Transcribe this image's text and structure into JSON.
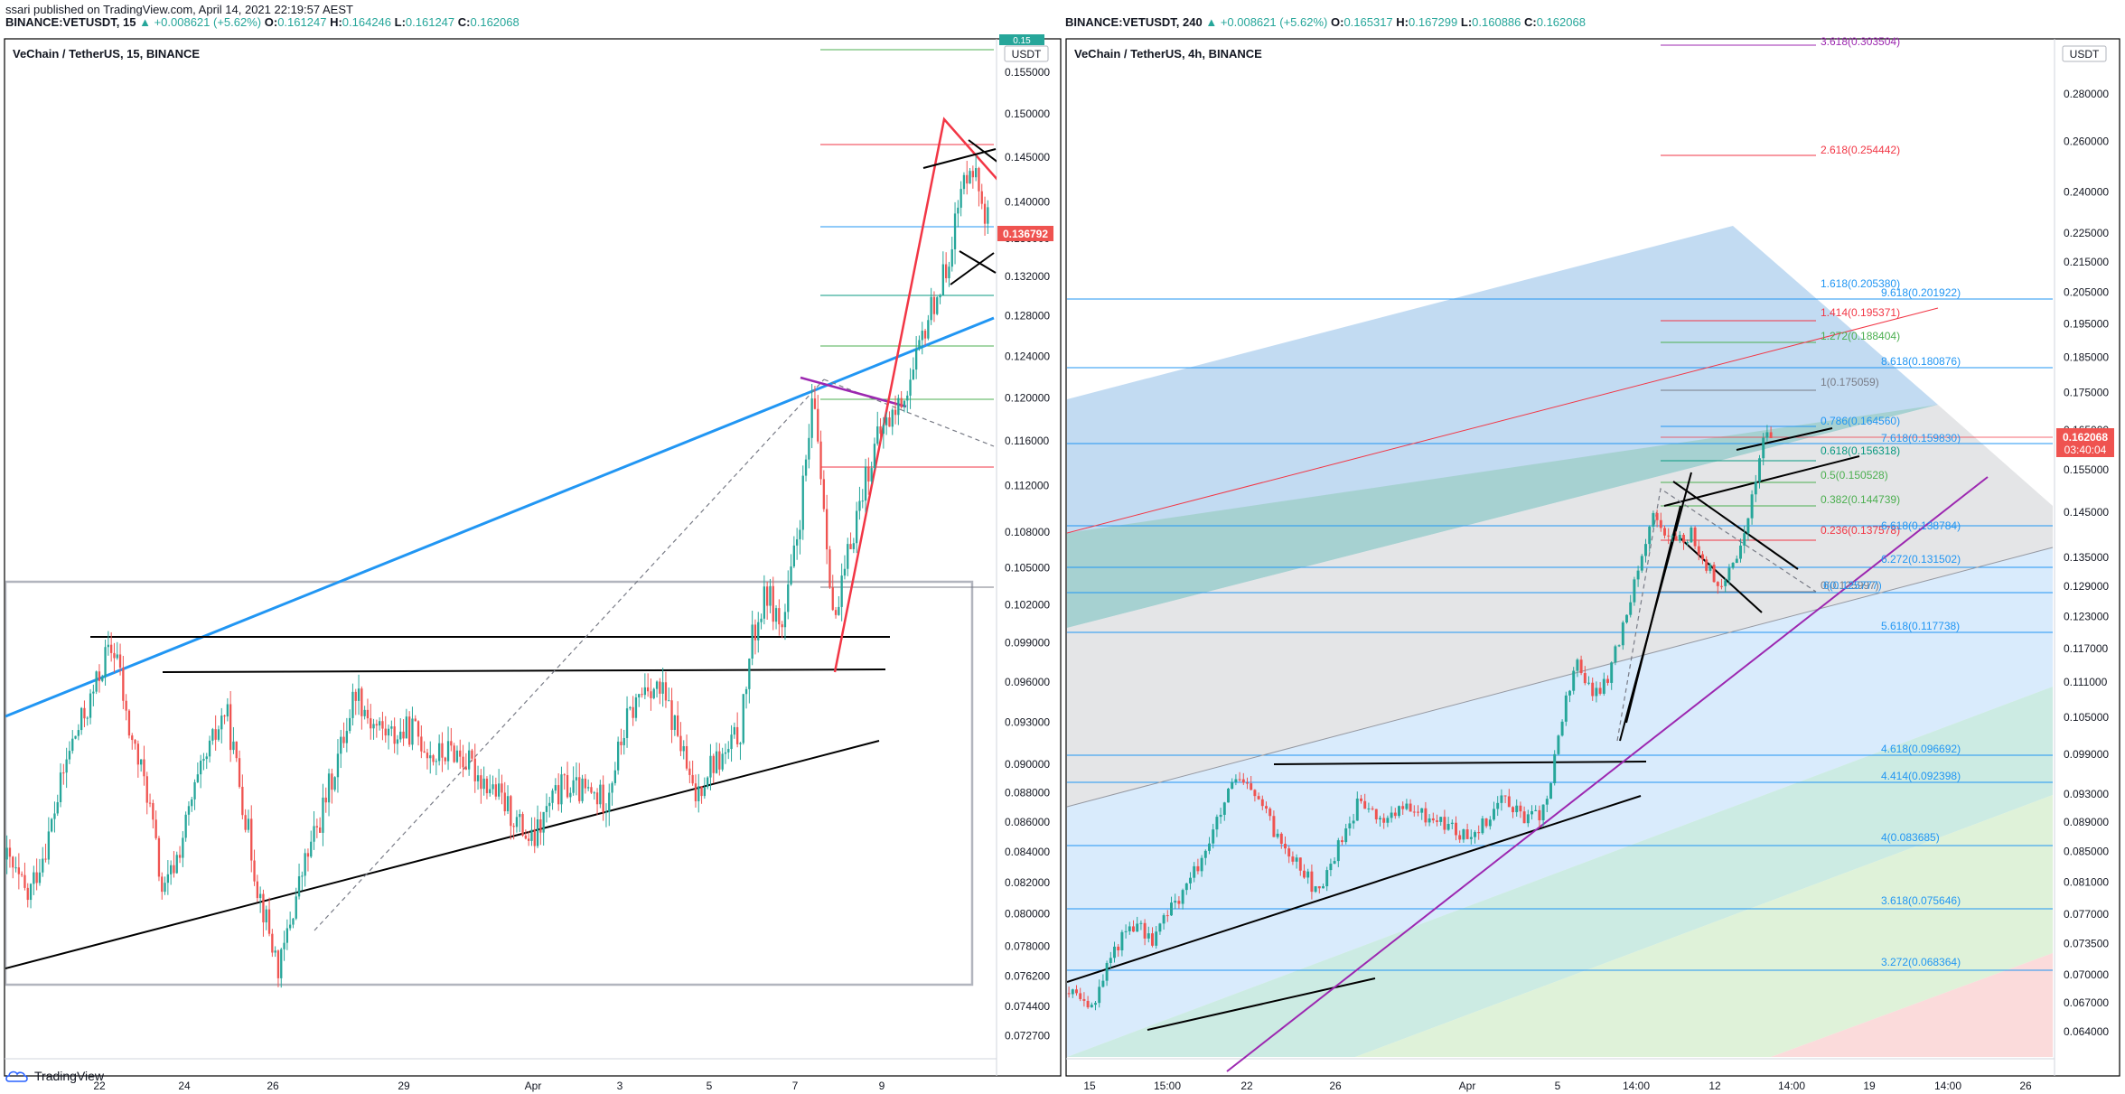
{
  "page": {
    "publish_line": "ssari published on TradingView.com, April 14, 2021 22:19:57 AEST",
    "brand": "TradingView",
    "brand_icon": "tradingview-cloud-icon",
    "colors": {
      "up": "#26a69a",
      "down": "#ef5350",
      "price_tag": "#ef5350",
      "trend_blue": "#2196f3",
      "trend_red": "#f23645",
      "trend_purple": "#9c27b0",
      "line_black": "#000000"
    }
  },
  "panels": [
    {
      "id": "left",
      "header": {
        "symbol": "BINANCE:VETUSDT, 15",
        "change": "+0.008621 (+5.62%)",
        "o_label": "O:",
        "o": "0.161247",
        "h_label": "H:",
        "h": "0.164246",
        "l_label": "L:",
        "l": "0.161247",
        "c_label": "C:",
        "c": "0.162068"
      },
      "title": "VeChain / TetherUS, 15, BINANCE",
      "currency": "USDT",
      "last_price": "0.136792",
      "top_partial_tag": "0.15",
      "price_labels": [
        "0.155000",
        "0.150000",
        "0.145000",
        "0.140000",
        "0.136000",
        "0.132000",
        "0.128000",
        "0.124000",
        "0.120000",
        "0.116000",
        "0.112000",
        "0.108000",
        "0.105000",
        "0.102000",
        "0.099000",
        "0.096000",
        "0.093000",
        "0.090000",
        "0.088000",
        "0.086000",
        "0.084000",
        "0.082000",
        "0.080000",
        "0.078000",
        "0.076200",
        "0.074400",
        "0.072700"
      ],
      "time_labels": [
        "22",
        "24",
        "26",
        "29",
        "Apr",
        "3",
        "5",
        "7",
        "9"
      ]
    },
    {
      "id": "right",
      "header": {
        "symbol": "BINANCE:VETUSDT, 240",
        "change": "+0.008621 (+5.62%)",
        "o_label": "O:",
        "o": "0.165317",
        "h_label": "H:",
        "h": "0.167299",
        "l_label": "L:",
        "l": "0.160886",
        "c_label": "C:",
        "c": "0.162068"
      },
      "title": "VeChain / TetherUS, 4h, BINANCE",
      "currency": "USDT",
      "last_price": "0.162068",
      "countdown": "03:40:04",
      "price_labels": [
        "0.280000",
        "0.260000",
        "0.240000",
        "0.225000",
        "0.215000",
        "0.205000",
        "0.195000",
        "0.185000",
        "0.175000",
        "0.165000",
        "0.155000",
        "0.145000",
        "0.135000",
        "0.129000",
        "0.123000",
        "0.117000",
        "0.111000",
        "0.105000",
        "0.099000",
        "0.093000",
        "0.089000",
        "0.085000",
        "0.081000",
        "0.077000",
        "0.073500",
        "0.070000",
        "0.067000",
        "0.064000"
      ],
      "time_labels": [
        "15",
        "15:00",
        "22",
        "26",
        "Apr",
        "5",
        "14:00",
        "12",
        "14:00",
        "19",
        "14:00",
        "26"
      ],
      "fib_labels": [
        {
          "text": "3.618(0.303504)",
          "color": "#9c27b0"
        },
        {
          "text": "2.618(0.254442)",
          "color": "#f23645"
        },
        {
          "text": "1.618(0.205380)",
          "color": "#2196f3"
        },
        {
          "text": "1.414(0.195371)",
          "color": "#f23645"
        },
        {
          "text": "1.272(0.188404)",
          "color": "#4caf50"
        },
        {
          "text": "1(0.175059)",
          "color": "#787b86"
        },
        {
          "text": "0.786(0.164560)",
          "color": "#2196f3"
        },
        {
          "text": "0.618(0.156318)",
          "color": "#089981"
        },
        {
          "text": "0.5(0.150528)",
          "color": "#4caf50"
        },
        {
          "text": "0.382(0.144739)",
          "color": "#4caf50"
        },
        {
          "text": "0.236(0.137578)",
          "color": "#f23645"
        },
        {
          "text": "0(0.125997)",
          "color": "#787b86"
        },
        {
          "text": "9.618(0.201922)",
          "color": "#2196f3"
        },
        {
          "text": "8.618(0.180876)",
          "color": "#2196f3"
        },
        {
          "text": "7.618(0.159830)",
          "color": "#2196f3"
        },
        {
          "text": "6.618(0.138784)",
          "color": "#2196f3"
        },
        {
          "text": "6.272(0.131502)",
          "color": "#2196f3"
        },
        {
          "text": "6(0.125777)",
          "color": "#2196f3"
        },
        {
          "text": "5.618(0.117738)",
          "color": "#2196f3"
        },
        {
          "text": "4.618(0.096692)",
          "color": "#2196f3"
        },
        {
          "text": "4.414(0.092398)",
          "color": "#2196f3"
        },
        {
          "text": "4(0.083685)",
          "color": "#2196f3"
        },
        {
          "text": "3.618(0.075646)",
          "color": "#2196f3"
        },
        {
          "text": "3.272(0.068364)",
          "color": "#2196f3"
        }
      ]
    }
  ],
  "chart_data": [
    {
      "type": "candlestick",
      "title": "VeChain / TetherUS, 15, BINANCE",
      "x_range": [
        "Mar 20",
        "Apr 11"
      ],
      "xticks": [
        "22",
        "24",
        "26",
        "29",
        "Apr",
        "3",
        "5",
        "7",
        "9"
      ],
      "ylim": [
        0.0715,
        0.159
      ],
      "y_scale": "log",
      "last_price": 0.136792,
      "series_path": [
        {
          "x": 0.0,
          "y": 0.0835
        },
        {
          "x": 0.02,
          "y": 0.081
        },
        {
          "x": 0.04,
          "y": 0.085
        },
        {
          "x": 0.06,
          "y": 0.091
        },
        {
          "x": 0.08,
          "y": 0.0945
        },
        {
          "x": 0.095,
          "y": 0.098
        },
        {
          "x": 0.105,
          "y": 0.0985
        },
        {
          "x": 0.115,
          "y": 0.093
        },
        {
          "x": 0.135,
          "y": 0.088
        },
        {
          "x": 0.15,
          "y": 0.081
        },
        {
          "x": 0.165,
          "y": 0.084
        },
        {
          "x": 0.18,
          "y": 0.088
        },
        {
          "x": 0.195,
          "y": 0.091
        },
        {
          "x": 0.21,
          "y": 0.094
        },
        {
          "x": 0.225,
          "y": 0.088
        },
        {
          "x": 0.24,
          "y": 0.082
        },
        {
          "x": 0.255,
          "y": 0.078
        },
        {
          "x": 0.262,
          "y": 0.0765
        },
        {
          "x": 0.27,
          "y": 0.079
        },
        {
          "x": 0.285,
          "y": 0.083
        },
        {
          "x": 0.3,
          "y": 0.086
        },
        {
          "x": 0.32,
          "y": 0.091
        },
        {
          "x": 0.335,
          "y": 0.0955
        },
        {
          "x": 0.35,
          "y": 0.093
        },
        {
          "x": 0.37,
          "y": 0.092
        },
        {
          "x": 0.39,
          "y": 0.0925
        },
        {
          "x": 0.41,
          "y": 0.0905
        },
        {
          "x": 0.43,
          "y": 0.091
        },
        {
          "x": 0.45,
          "y": 0.0895
        },
        {
          "x": 0.47,
          "y": 0.088
        },
        {
          "x": 0.49,
          "y": 0.086
        },
        {
          "x": 0.505,
          "y": 0.0845
        },
        {
          "x": 0.52,
          "y": 0.087
        },
        {
          "x": 0.535,
          "y": 0.0885
        },
        {
          "x": 0.555,
          "y": 0.088
        },
        {
          "x": 0.575,
          "y": 0.0875
        },
        {
          "x": 0.595,
          "y": 0.093
        },
        {
          "x": 0.615,
          "y": 0.096
        },
        {
          "x": 0.63,
          "y": 0.095
        },
        {
          "x": 0.645,
          "y": 0.092
        },
        {
          "x": 0.66,
          "y": 0.0875
        },
        {
          "x": 0.675,
          "y": 0.09
        },
        {
          "x": 0.69,
          "y": 0.0905
        },
        {
          "x": 0.705,
          "y": 0.0925
        },
        {
          "x": 0.715,
          "y": 0.099
        },
        {
          "x": 0.73,
          "y": 0.103
        },
        {
          "x": 0.745,
          "y": 0.1
        },
        {
          "x": 0.76,
          "y": 0.108
        },
        {
          "x": 0.775,
          "y": 0.12
        },
        {
          "x": 0.785,
          "y": 0.11
        },
        {
          "x": 0.795,
          "y": 0.1
        },
        {
          "x": 0.81,
          "y": 0.107
        },
        {
          "x": 0.825,
          "y": 0.113
        },
        {
          "x": 0.84,
          "y": 0.117
        },
        {
          "x": 0.855,
          "y": 0.119
        },
        {
          "x": 0.87,
          "y": 0.122
        },
        {
          "x": 0.885,
          "y": 0.128
        },
        {
          "x": 0.9,
          "y": 0.132
        },
        {
          "x": 0.915,
          "y": 0.14
        },
        {
          "x": 0.925,
          "y": 0.145
        },
        {
          "x": 0.935,
          "y": 0.141
        },
        {
          "x": 0.945,
          "y": 0.136792
        }
      ]
    },
    {
      "type": "candlestick",
      "title": "VeChain / TetherUS, 4h, BINANCE",
      "x_range": [
        "Feb 14",
        "Apr 27"
      ],
      "xticks": [
        "15",
        "15:00",
        "22",
        "26",
        "Apr",
        "5",
        "14:00",
        "12",
        "14:00",
        "19",
        "14:00",
        "26"
      ],
      "ylim": [
        0.0615,
        0.305
      ],
      "y_scale": "log",
      "last_price": 0.162068,
      "series_path": [
        {
          "x": 0.0,
          "y": 0.068
        },
        {
          "x": 0.02,
          "y": 0.066
        },
        {
          "x": 0.04,
          "y": 0.072
        },
        {
          "x": 0.06,
          "y": 0.076
        },
        {
          "x": 0.08,
          "y": 0.074
        },
        {
          "x": 0.1,
          "y": 0.078
        },
        {
          "x": 0.12,
          "y": 0.082
        },
        {
          "x": 0.14,
          "y": 0.088
        },
        {
          "x": 0.16,
          "y": 0.095
        },
        {
          "x": 0.18,
          "y": 0.093
        },
        {
          "x": 0.2,
          "y": 0.087
        },
        {
          "x": 0.22,
          "y": 0.084
        },
        {
          "x": 0.24,
          "y": 0.079
        },
        {
          "x": 0.26,
          "y": 0.086
        },
        {
          "x": 0.28,
          "y": 0.092
        },
        {
          "x": 0.3,
          "y": 0.089
        },
        {
          "x": 0.32,
          "y": 0.091
        },
        {
          "x": 0.34,
          "y": 0.09
        },
        {
          "x": 0.36,
          "y": 0.089
        },
        {
          "x": 0.38,
          "y": 0.087
        },
        {
          "x": 0.4,
          "y": 0.089
        },
        {
          "x": 0.42,
          "y": 0.093
        },
        {
          "x": 0.44,
          "y": 0.089
        },
        {
          "x": 0.46,
          "y": 0.091
        },
        {
          "x": 0.475,
          "y": 0.105
        },
        {
          "x": 0.49,
          "y": 0.115
        },
        {
          "x": 0.505,
          "y": 0.108
        },
        {
          "x": 0.52,
          "y": 0.112
        },
        {
          "x": 0.535,
          "y": 0.122
        },
        {
          "x": 0.55,
          "y": 0.135
        },
        {
          "x": 0.565,
          "y": 0.145
        },
        {
          "x": 0.58,
          "y": 0.138
        },
        {
          "x": 0.6,
          "y": 0.14
        },
        {
          "x": 0.615,
          "y": 0.133
        },
        {
          "x": 0.63,
          "y": 0.128
        },
        {
          "x": 0.645,
          "y": 0.136
        },
        {
          "x": 0.66,
          "y": 0.15
        },
        {
          "x": 0.67,
          "y": 0.165
        },
        {
          "x": 0.68,
          "y": 0.162068
        }
      ]
    }
  ]
}
